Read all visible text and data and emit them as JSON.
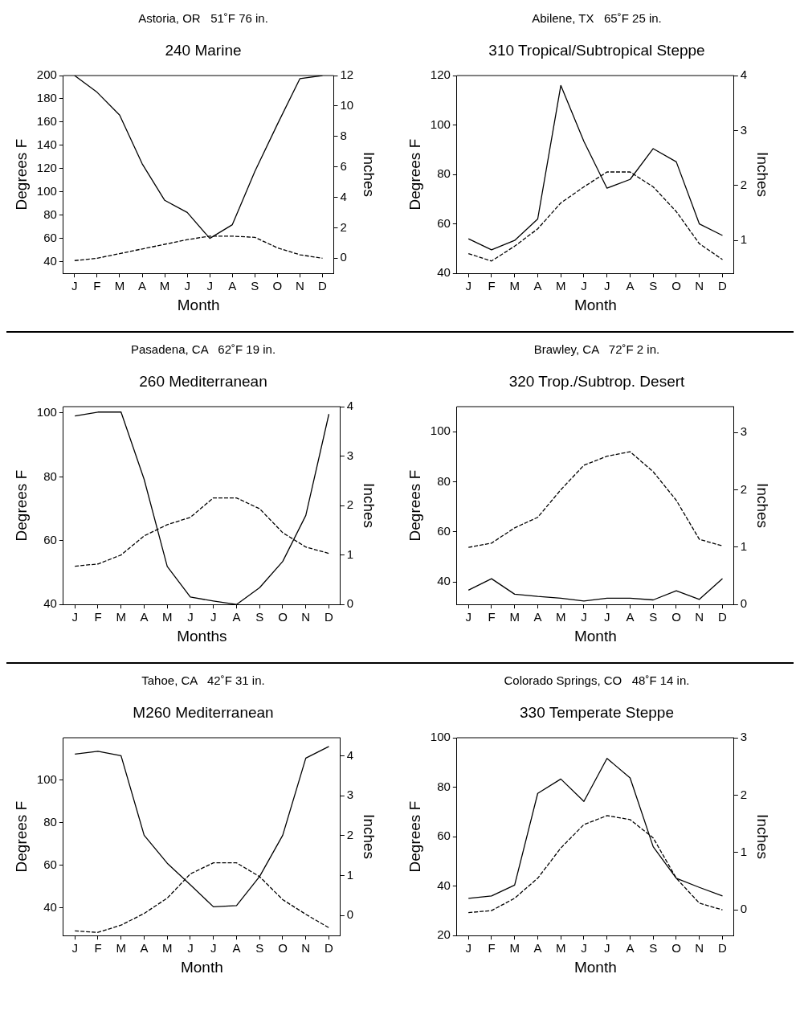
{
  "chart_data": [
    {
      "type": "line",
      "subtitle": "Astoria, OR   51˚F 76 in.",
      "title": "240 Marine",
      "xlabel": "Month",
      "ylabel": "Degrees F",
      "y2label": "Inches",
      "categories": [
        "J",
        "F",
        "M",
        "A",
        "M",
        "J",
        "J",
        "A",
        "S",
        "O",
        "N",
        "D"
      ],
      "ylim": [
        30,
        200
      ],
      "yticks": [
        40,
        60,
        80,
        100,
        120,
        140,
        160,
        180,
        200
      ],
      "y2lim": [
        -1,
        12
      ],
      "y2ticks": [
        0,
        2,
        4,
        6,
        8,
        10,
        12
      ],
      "grid": false,
      "legend": false,
      "marker": "none",
      "series": [
        {
          "color": "#000000",
          "line_style": "dashed",
          "values": [
            41,
            43,
            47,
            51,
            55,
            59,
            62,
            62,
            61,
            52,
            46,
            43
          ]
        },
        {
          "color": "#000000",
          "line_style": "solid",
          "axis": "y2",
          "values": [
            12,
            10.9,
            9.4,
            6.2,
            3.8,
            3.0,
            1.3,
            2.2,
            5.7,
            8.8,
            11.8,
            12
          ]
        }
      ]
    },
    {
      "type": "line",
      "subtitle": "Abilene, TX   65˚F 25 in.",
      "title": "310 Tropical/Subtropical Steppe",
      "xlabel": "Month",
      "ylabel": "Degrees F",
      "y2label": "Inches",
      "categories": [
        "J",
        "F",
        "M",
        "A",
        "M",
        "J",
        "J",
        "A",
        "S",
        "O",
        "N",
        "D"
      ],
      "ylim": [
        40,
        120
      ],
      "yticks": [
        40,
        60,
        80,
        100,
        120
      ],
      "y2lim": [
        0.4,
        4
      ],
      "y2ticks": [
        1,
        2,
        3,
        4
      ],
      "grid": false,
      "legend": false,
      "marker": "none",
      "series": [
        {
          "color": "#000000",
          "line_style": "dashed",
          "values": [
            48,
            45,
            51,
            58,
            68.5,
            75,
            81,
            81,
            75,
            65,
            52,
            45.6
          ]
        },
        {
          "color": "#000000",
          "line_style": "solid",
          "axis": "y2",
          "values": [
            1.03,
            0.83,
            1.0,
            1.39,
            3.82,
            2.8,
            1.95,
            2.11,
            2.67,
            2.43,
            1.3,
            1.09
          ]
        }
      ]
    },
    {
      "type": "line",
      "subtitle": "Pasadena, CA   62˚F 19 in.",
      "title": "260 Mediterranean",
      "xlabel": "Months",
      "ylabel": "Degrees F",
      "y2label": "Inches",
      "categories": [
        "J",
        "F",
        "M",
        "A",
        "M",
        "J",
        "J",
        "A",
        "S",
        "O",
        "N",
        "D"
      ],
      "ylim": [
        40,
        102
      ],
      "yticks": [
        40,
        60,
        80,
        100
      ],
      "y2lim": [
        0,
        4
      ],
      "y2ticks": [
        0,
        1,
        2,
        3,
        4
      ],
      "grid": false,
      "legend": false,
      "marker": "none",
      "series": [
        {
          "color": "#000000",
          "line_style": "dashed",
          "values": [
            52,
            52.7,
            55.5,
            61.5,
            65,
            67.3,
            73.4,
            73.4,
            70,
            62.5,
            58,
            56
          ]
        },
        {
          "color": "#000000",
          "line_style": "solid",
          "axis": "y2",
          "values": [
            3.81,
            3.89,
            3.89,
            2.53,
            0.77,
            0.15,
            0.07,
            0,
            0.34,
            0.87,
            1.8,
            3.85
          ]
        }
      ]
    },
    {
      "type": "line",
      "subtitle": "Brawley, CA   72˚F 2 in.",
      "title": "320 Trop./Subtrop. Desert",
      "xlabel": "Month",
      "ylabel": "Degrees F",
      "y2label": "Inches",
      "categories": [
        "J",
        "F",
        "M",
        "A",
        "M",
        "J",
        "J",
        "A",
        "S",
        "O",
        "N",
        "D"
      ],
      "ylim": [
        31,
        110
      ],
      "yticks": [
        40,
        60,
        80,
        100
      ],
      "y2lim": [
        0,
        3.45
      ],
      "y2ticks": [
        0,
        1,
        2,
        3
      ],
      "grid": false,
      "legend": false,
      "marker": "none",
      "series": [
        {
          "color": "#000000",
          "line_style": "dashed",
          "values": [
            53.8,
            55.5,
            61.6,
            65.8,
            76.8,
            86.6,
            90.2,
            92,
            84,
            72.6,
            57,
            54.4
          ]
        },
        {
          "color": "#000000",
          "line_style": "solid",
          "axis": "y2",
          "values": [
            0.25,
            0.45,
            0.18,
            0.14,
            0.11,
            0.06,
            0.11,
            0.11,
            0.08,
            0.24,
            0.09,
            0.45
          ]
        }
      ]
    },
    {
      "type": "line",
      "subtitle": "Tahoe, CA   42˚F 31 in.",
      "title": "M260 Mediterranean",
      "xlabel": "Month",
      "ylabel": "Degrees F",
      "y2label": "Inches",
      "categories": [
        "J",
        "F",
        "M",
        "A",
        "M",
        "J",
        "J",
        "A",
        "S",
        "O",
        "N",
        "D"
      ],
      "ylim": [
        27,
        120
      ],
      "yticks": [
        40,
        60,
        80,
        100
      ],
      "y2lim": [
        -0.5,
        4.45
      ],
      "y2ticks": [
        0,
        1,
        2,
        3,
        4
      ],
      "grid": false,
      "legend": false,
      "marker": "none",
      "series": [
        {
          "color": "#000000",
          "line_style": "dashed",
          "values": [
            29.2,
            28.5,
            31.9,
            37.4,
            44.6,
            56,
            61.2,
            61.2,
            54.7,
            43.9,
            37,
            30.7
          ]
        },
        {
          "color": "#000000",
          "line_style": "solid",
          "axis": "y2",
          "values": [
            4.04,
            4.11,
            4.0,
            2.01,
            1.31,
            0.77,
            0.22,
            0.25,
            0.98,
            2.01,
            3.94,
            4.23
          ]
        }
      ]
    },
    {
      "type": "line",
      "subtitle": "Colorado Springs, CO   48˚F 14 in.",
      "title": "330 Temperate Steppe",
      "xlabel": "Month",
      "ylabel": "Degrees F",
      "y2label": "Inches",
      "categories": [
        "J",
        "F",
        "M",
        "A",
        "M",
        "J",
        "J",
        "A",
        "S",
        "O",
        "N",
        "D"
      ],
      "ylim": [
        20,
        100
      ],
      "yticks": [
        20,
        40,
        60,
        80,
        100
      ],
      "y2lim": [
        -0.45,
        3
      ],
      "y2ticks": [
        0,
        1,
        2,
        3
      ],
      "grid": false,
      "legend": false,
      "marker": "none",
      "series": [
        {
          "color": "#000000",
          "line_style": "dashed",
          "values": [
            29.3,
            30.1,
            35.1,
            43.2,
            55.4,
            64.9,
            68.5,
            66.9,
            59.5,
            43.2,
            33.1,
            30.4
          ]
        },
        {
          "color": "#000000",
          "line_style": "solid",
          "axis": "y2",
          "values": [
            0.2,
            0.24,
            0.43,
            2.03,
            2.28,
            1.89,
            2.64,
            2.3,
            1.1,
            0.55,
            0.39,
            0.24
          ]
        }
      ]
    }
  ]
}
